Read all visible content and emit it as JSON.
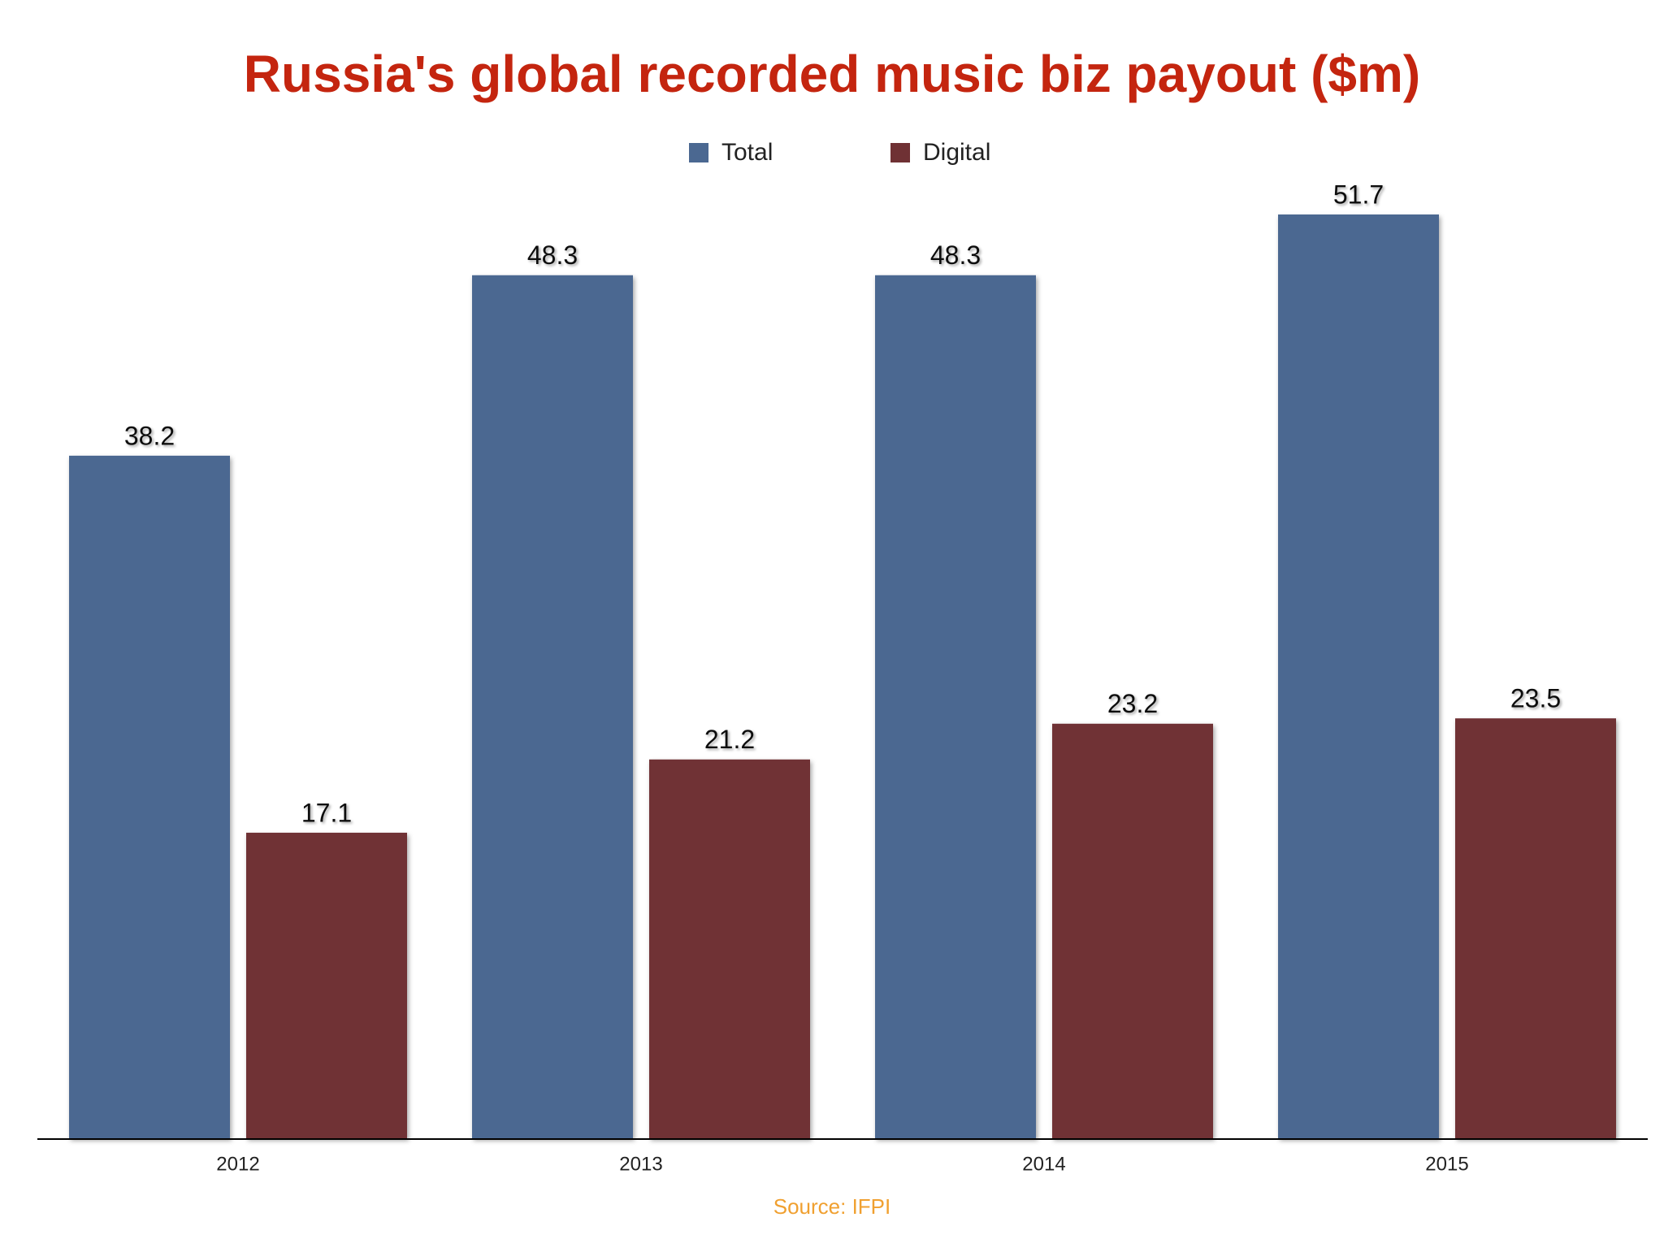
{
  "chart_data": {
    "type": "bar",
    "title": "Russia's global recorded music biz payout ($m)",
    "categories": [
      "2012",
      "2013",
      "2014",
      "2015"
    ],
    "series": [
      {
        "name": "Total",
        "color": "#4b6891",
        "values": [
          38.2,
          48.3,
          48.3,
          51.7
        ]
      },
      {
        "name": "Digital",
        "color": "#6f3134",
        "values": [
          17.1,
          21.2,
          23.2,
          23.5
        ]
      }
    ],
    "source": "Source: IFPI"
  }
}
